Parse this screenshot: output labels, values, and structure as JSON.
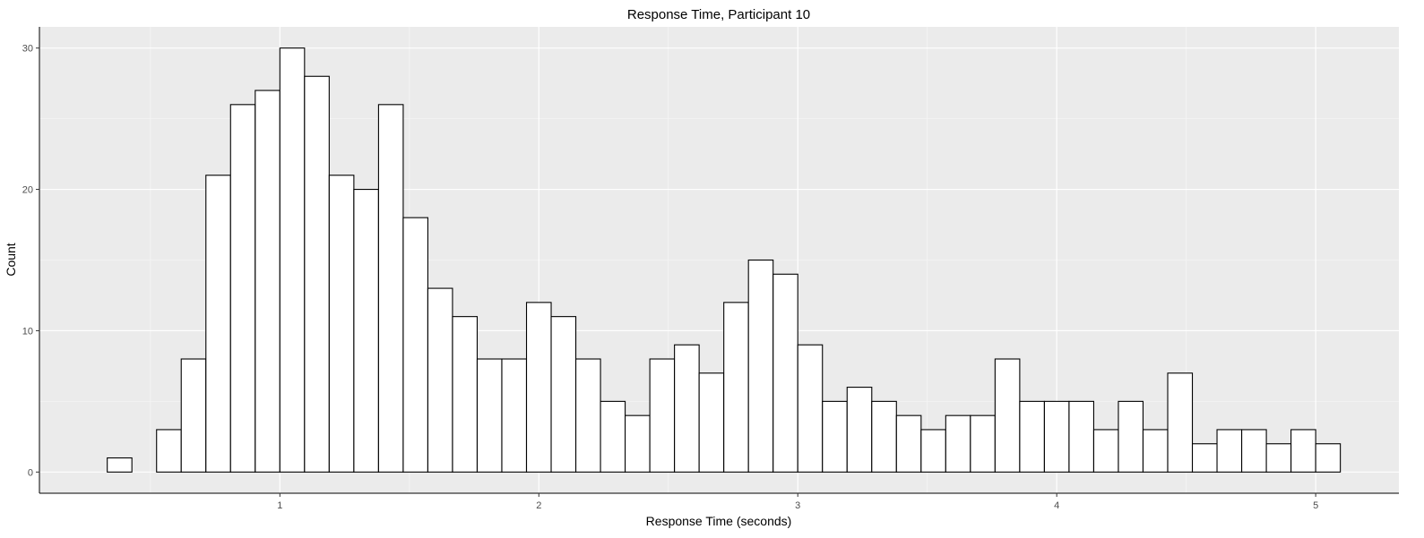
{
  "chart_data": {
    "type": "bar",
    "title": "Response Time, Participant 10",
    "xlabel": "Response Time (seconds)",
    "ylabel": "Count",
    "bin_width": 0.0952,
    "bins_start": [
      0.3333,
      0.4286,
      0.5238,
      0.619,
      0.7143,
      0.8095,
      0.9048,
      1.0,
      1.0952,
      1.1905,
      1.2857,
      1.381,
      1.4762,
      1.5714,
      1.6667,
      1.7619,
      1.8571,
      1.9524,
      2.0476,
      2.1429,
      2.2381,
      2.3333,
      2.4286,
      2.5238,
      2.619,
      2.7143,
      2.8095,
      2.9048,
      3.0,
      3.0952,
      3.1905,
      3.2857,
      3.381,
      3.4762,
      3.5714,
      3.6667,
      3.7619,
      3.8571,
      3.9524,
      4.0476,
      4.1429,
      4.2381,
      4.3333,
      4.4286,
      4.5238,
      4.619,
      4.7143,
      4.8095,
      4.9048,
      5.0
    ],
    "values": [
      1,
      0,
      3,
      8,
      21,
      26,
      27,
      30,
      28,
      21,
      20,
      26,
      18,
      13,
      11,
      8,
      8,
      12,
      11,
      8,
      5,
      4,
      8,
      9,
      7,
      12,
      15,
      14,
      9,
      5,
      6,
      5,
      4,
      3,
      4,
      4,
      8,
      5,
      5,
      5,
      3,
      5,
      3,
      7,
      2,
      3,
      3,
      2,
      3,
      2
    ],
    "xlim": [
      0.0714,
      5.3214
    ],
    "ylim": [
      -1.5,
      31.5
    ],
    "x_ticks": [
      1,
      2,
      3,
      4,
      5
    ],
    "y_ticks": [
      0,
      10,
      20,
      30
    ],
    "grid": true,
    "colors": {
      "panel_bg": "#ebebeb",
      "grid_major": "#ffffff",
      "grid_minor": "#f5f5f5",
      "bar_fill": "#ffffff",
      "bar_stroke": "#000000",
      "tick_text": "#4d4d4d"
    }
  }
}
